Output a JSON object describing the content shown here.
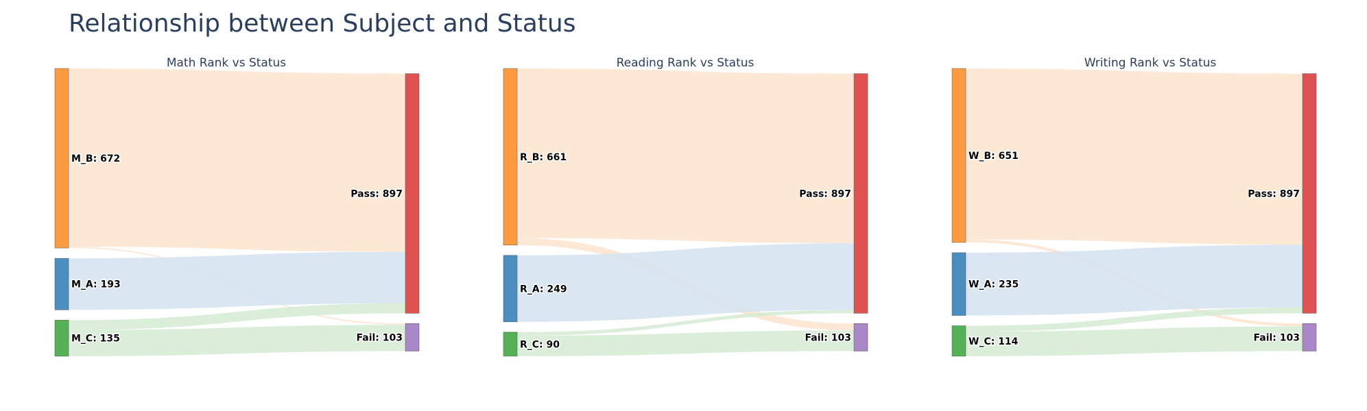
{
  "title": "Relationship between Subject and Status",
  "colors": {
    "rank_B": "#fd9b40",
    "rank_A": "#4a8fc0",
    "rank_C": "#55b155",
    "pass": "#e05252",
    "fail": "#a987c8",
    "link_B": "#fde4cf",
    "link_A": "#d3e3f0",
    "link_C": "#d4ebd3"
  },
  "chart_data": [
    {
      "type": "sankey",
      "title": "Math Rank vs Status",
      "sources": [
        {
          "id": "M_B",
          "label": "M_B: 672",
          "value": 672,
          "color_key": "rank_B",
          "link_color_key": "link_B"
        },
        {
          "id": "M_A",
          "label": "M_A: 193",
          "value": 193,
          "color_key": "rank_A",
          "link_color_key": "link_A"
        },
        {
          "id": "M_C",
          "label": "M_C: 135",
          "value": 135,
          "color_key": "rank_C",
          "link_color_key": "link_C"
        }
      ],
      "targets": [
        {
          "id": "Pass",
          "label": "Pass: 897",
          "value": 897,
          "color_key": "pass"
        },
        {
          "id": "Fail",
          "label": "Fail: 103",
          "value": 103,
          "color_key": "fail"
        }
      ],
      "links": [
        {
          "source": "M_B",
          "target": "Pass",
          "value": 667
        },
        {
          "source": "M_B",
          "target": "Fail",
          "value": 5
        },
        {
          "source": "M_A",
          "target": "Pass",
          "value": 193
        },
        {
          "source": "M_C",
          "target": "Pass",
          "value": 37
        },
        {
          "source": "M_C",
          "target": "Fail",
          "value": 98
        }
      ]
    },
    {
      "type": "sankey",
      "title": "Reading Rank vs Status",
      "sources": [
        {
          "id": "R_B",
          "label": "R_B: 661",
          "value": 661,
          "color_key": "rank_B",
          "link_color_key": "link_B"
        },
        {
          "id": "R_A",
          "label": "R_A: 249",
          "value": 249,
          "color_key": "rank_A",
          "link_color_key": "link_A"
        },
        {
          "id": "R_C",
          "label": "R_C: 90",
          "value": 90,
          "color_key": "rank_C",
          "link_color_key": "link_C"
        }
      ],
      "targets": [
        {
          "id": "Pass",
          "label": "Pass: 897",
          "value": 897,
          "color_key": "pass"
        },
        {
          "id": "Fail",
          "label": "Fail: 103",
          "value": 103,
          "color_key": "fail"
        }
      ],
      "links": [
        {
          "source": "R_B",
          "target": "Pass",
          "value": 635
        },
        {
          "source": "R_B",
          "target": "Fail",
          "value": 26
        },
        {
          "source": "R_A",
          "target": "Pass",
          "value": 249
        },
        {
          "source": "R_C",
          "target": "Pass",
          "value": 13
        },
        {
          "source": "R_C",
          "target": "Fail",
          "value": 77
        }
      ]
    },
    {
      "type": "sankey",
      "title": "Writing Rank vs Status",
      "sources": [
        {
          "id": "W_B",
          "label": "W_B: 651",
          "value": 651,
          "color_key": "rank_B",
          "link_color_key": "link_B"
        },
        {
          "id": "W_A",
          "label": "W_A: 235",
          "value": 235,
          "color_key": "rank_A",
          "link_color_key": "link_A"
        },
        {
          "id": "W_C",
          "label": "W_C: 114",
          "value": 114,
          "color_key": "rank_C",
          "link_color_key": "link_C"
        }
      ],
      "targets": [
        {
          "id": "Pass",
          "label": "Pass: 897",
          "value": 897,
          "color_key": "pass"
        },
        {
          "id": "Fail",
          "label": "Fail: 103",
          "value": 103,
          "color_key": "fail"
        }
      ],
      "links": [
        {
          "source": "W_B",
          "target": "Pass",
          "value": 640
        },
        {
          "source": "W_B",
          "target": "Fail",
          "value": 11
        },
        {
          "source": "W_A",
          "target": "Pass",
          "value": 235
        },
        {
          "source": "W_C",
          "target": "Pass",
          "value": 22
        },
        {
          "source": "W_C",
          "target": "Fail",
          "value": 92
        }
      ]
    }
  ]
}
